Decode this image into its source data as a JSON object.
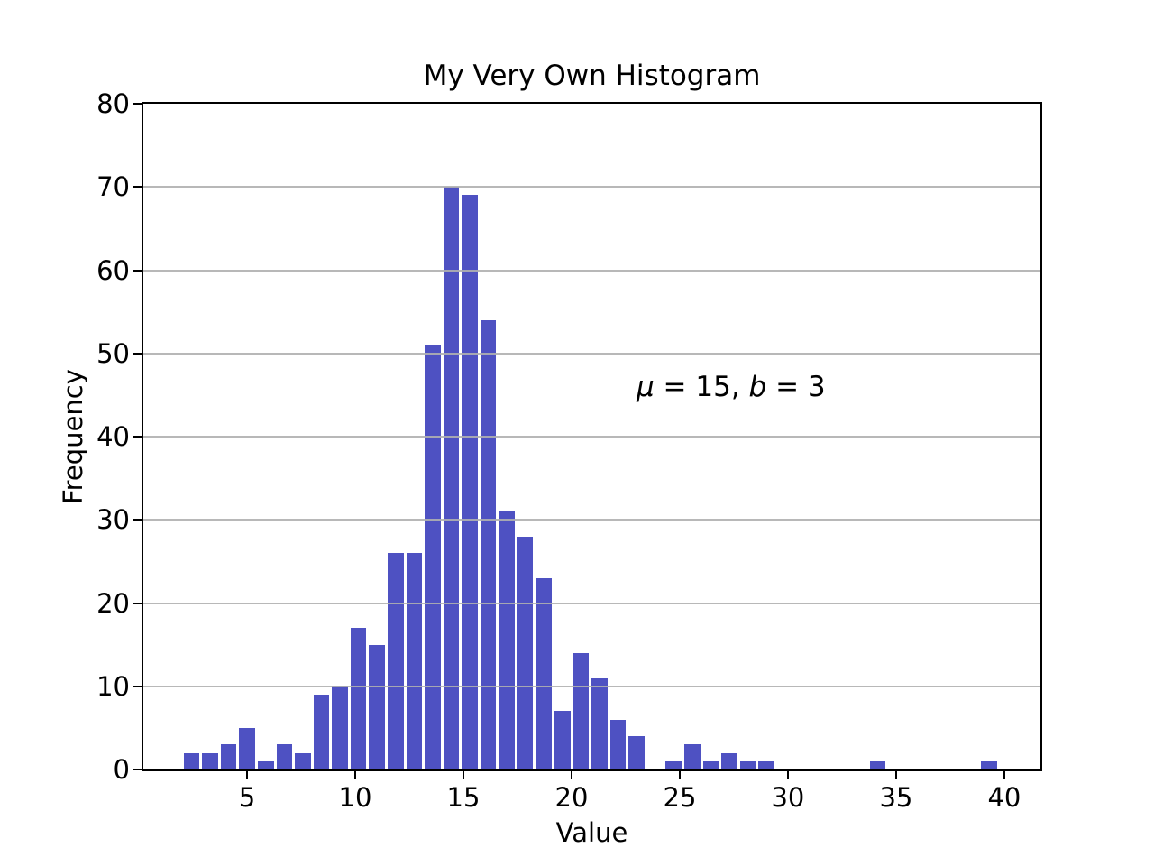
{
  "figure": {
    "title": "My Very Own Histogram",
    "x_axis_label": "Value",
    "y_axis_label": "Frequency"
  },
  "annotation": {
    "full_text": "μ = 15, b = 3",
    "parts": [
      {
        "text": "μ",
        "italic": true
      },
      {
        "text": " = 15, ",
        "italic": false
      },
      {
        "text": "b",
        "italic": true
      },
      {
        "text": " = 3",
        "italic": false
      }
    ],
    "x_data": 23,
    "y_data": 46
  },
  "chart_data": {
    "type": "bar",
    "subtype": "histogram",
    "title": "My Very Own Histogram",
    "xlabel": "Value",
    "ylabel": "Frequency",
    "distribution_note_shown_on_plot": "μ = 15, b = 3",
    "bin_start": 2.01,
    "bin_width": 0.857,
    "n_bins": 44,
    "counts": [
      2,
      2,
      3,
      5,
      1,
      3,
      2,
      9,
      10,
      17,
      15,
      26,
      26,
      51,
      70,
      69,
      54,
      31,
      28,
      23,
      7,
      14,
      11,
      6,
      4,
      0,
      1,
      3,
      1,
      2,
      1,
      1,
      0,
      0,
      0,
      0,
      0,
      1,
      0,
      0,
      0,
      0,
      0,
      1
    ],
    "total_samples": 500,
    "xlim": [
      0.208,
      41.67
    ],
    "ylim": [
      0,
      80
    ],
    "xticks": [
      5,
      10,
      15,
      20,
      25,
      30,
      35,
      40
    ],
    "yticks": [
      0,
      10,
      20,
      30,
      40,
      50,
      60,
      70,
      80
    ],
    "grid": "horizontal-only",
    "grid_color": "#b0b0b0",
    "bar_color": "#4e51c2",
    "background_color": "#ffffff",
    "spine_color": "#000000",
    "legend": "none"
  }
}
